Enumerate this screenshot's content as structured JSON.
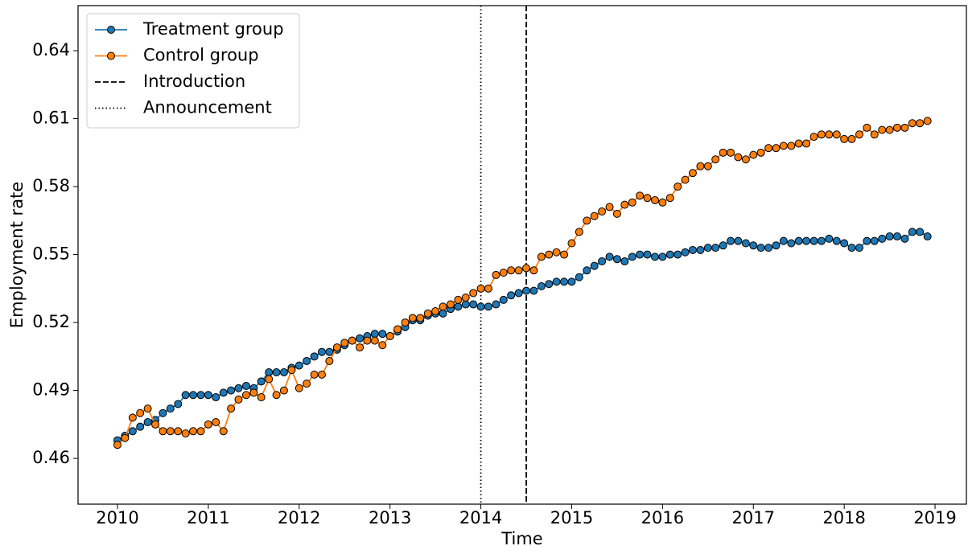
{
  "chart_data": {
    "type": "line",
    "xlabel": "Time",
    "ylabel": "Employment rate",
    "xlim": [
      2009.566,
      2019.345
    ],
    "ylim": [
      0.4398,
      0.6599
    ],
    "xticks": [
      2010,
      2011,
      2012,
      2013,
      2014,
      2015,
      2016,
      2017,
      2018,
      2019
    ],
    "yticks": [
      0.46,
      0.49,
      0.52,
      0.55,
      0.58,
      0.61,
      0.64
    ],
    "legend": "upper left",
    "x": [
      2010,
      2010.083,
      2010.167,
      2010.25,
      2010.333,
      2010.417,
      2010.5,
      2010.583,
      2010.667,
      2010.75,
      2010.833,
      2010.917,
      2011,
      2011.083,
      2011.167,
      2011.25,
      2011.333,
      2011.417,
      2011.5,
      2011.583,
      2011.667,
      2011.75,
      2011.833,
      2011.917,
      2012,
      2012.083,
      2012.167,
      2012.25,
      2012.333,
      2012.417,
      2012.5,
      2012.583,
      2012.667,
      2012.75,
      2012.833,
      2012.917,
      2013,
      2013.083,
      2013.167,
      2013.25,
      2013.333,
      2013.417,
      2013.5,
      2013.583,
      2013.667,
      2013.75,
      2013.833,
      2013.917,
      2014,
      2014.083,
      2014.167,
      2014.25,
      2014.333,
      2014.417,
      2014.5,
      2014.583,
      2014.667,
      2014.75,
      2014.833,
      2014.917,
      2015,
      2015.083,
      2015.167,
      2015.25,
      2015.333,
      2015.417,
      2015.5,
      2015.583,
      2015.667,
      2015.75,
      2015.833,
      2015.917,
      2016,
      2016.083,
      2016.167,
      2016.25,
      2016.333,
      2016.417,
      2016.5,
      2016.583,
      2016.667,
      2016.75,
      2016.833,
      2016.917,
      2017,
      2017.083,
      2017.167,
      2017.25,
      2017.333,
      2017.417,
      2017.5,
      2017.583,
      2017.667,
      2017.75,
      2017.833,
      2017.917,
      2018,
      2018.083,
      2018.167,
      2018.25,
      2018.333,
      2018.417,
      2018.5,
      2018.583,
      2018.667,
      2018.75,
      2018.833,
      2018.917
    ],
    "series": [
      {
        "name": "Treatment group",
        "color": "#1f77b4",
        "values": [
          0.468,
          0.47,
          0.472,
          0.474,
          0.476,
          0.477,
          0.48,
          0.482,
          0.484,
          0.488,
          0.488,
          0.488,
          0.488,
          0.487,
          0.489,
          0.49,
          0.491,
          0.492,
          0.491,
          0.494,
          0.498,
          0.498,
          0.498,
          0.5,
          0.501,
          0.503,
          0.505,
          0.507,
          0.507,
          0.508,
          0.51,
          0.512,
          0.513,
          0.514,
          0.515,
          0.515,
          0.514,
          0.516,
          0.518,
          0.521,
          0.521,
          0.523,
          0.524,
          0.524,
          0.526,
          0.527,
          0.528,
          0.528,
          0.527,
          0.527,
          0.528,
          0.53,
          0.532,
          0.533,
          0.534,
          0.534,
          0.536,
          0.537,
          0.538,
          0.538,
          0.538,
          0.54,
          0.543,
          0.545,
          0.547,
          0.549,
          0.548,
          0.547,
          0.549,
          0.55,
          0.55,
          0.549,
          0.549,
          0.55,
          0.55,
          0.551,
          0.552,
          0.552,
          0.553,
          0.553,
          0.554,
          0.556,
          0.556,
          0.555,
          0.554,
          0.553,
          0.553,
          0.554,
          0.556,
          0.555,
          0.556,
          0.556,
          0.556,
          0.556,
          0.557,
          0.556,
          0.555,
          0.553,
          0.553,
          0.556,
          0.556,
          0.557,
          0.558,
          0.558,
          0.557,
          0.56,
          0.56,
          0.558
        ]
      },
      {
        "name": "Control group",
        "color": "#ff7f0e",
        "values": [
          0.466,
          0.469,
          0.478,
          0.48,
          0.482,
          0.475,
          0.472,
          0.472,
          0.472,
          0.471,
          0.472,
          0.472,
          0.475,
          0.476,
          0.472,
          0.482,
          0.486,
          0.488,
          0.489,
          0.487,
          0.495,
          0.488,
          0.49,
          0.499,
          0.491,
          0.493,
          0.497,
          0.497,
          0.503,
          0.509,
          0.511,
          0.512,
          0.509,
          0.512,
          0.512,
          0.51,
          0.514,
          0.517,
          0.52,
          0.522,
          0.522,
          0.524,
          0.525,
          0.527,
          0.528,
          0.53,
          0.531,
          0.533,
          0.535,
          0.535,
          0.541,
          0.542,
          0.543,
          0.543,
          0.544,
          0.543,
          0.549,
          0.55,
          0.551,
          0.55,
          0.555,
          0.56,
          0.565,
          0.567,
          0.569,
          0.571,
          0.568,
          0.572,
          0.573,
          0.576,
          0.575,
          0.574,
          0.573,
          0.575,
          0.58,
          0.583,
          0.586,
          0.589,
          0.589,
          0.592,
          0.595,
          0.595,
          0.593,
          0.592,
          0.594,
          0.595,
          0.597,
          0.597,
          0.598,
          0.598,
          0.599,
          0.599,
          0.602,
          0.603,
          0.603,
          0.603,
          0.601,
          0.601,
          0.603,
          0.606,
          0.603,
          0.605,
          0.605,
          0.606,
          0.606,
          0.608,
          0.608,
          0.609
        ]
      }
    ],
    "vlines": [
      {
        "name": "Introduction",
        "x": 2014.5,
        "style": "dashed",
        "color": "#000000"
      },
      {
        "name": "Announcement",
        "x": 2014,
        "style": "dotted",
        "color": "#000000"
      }
    ]
  }
}
